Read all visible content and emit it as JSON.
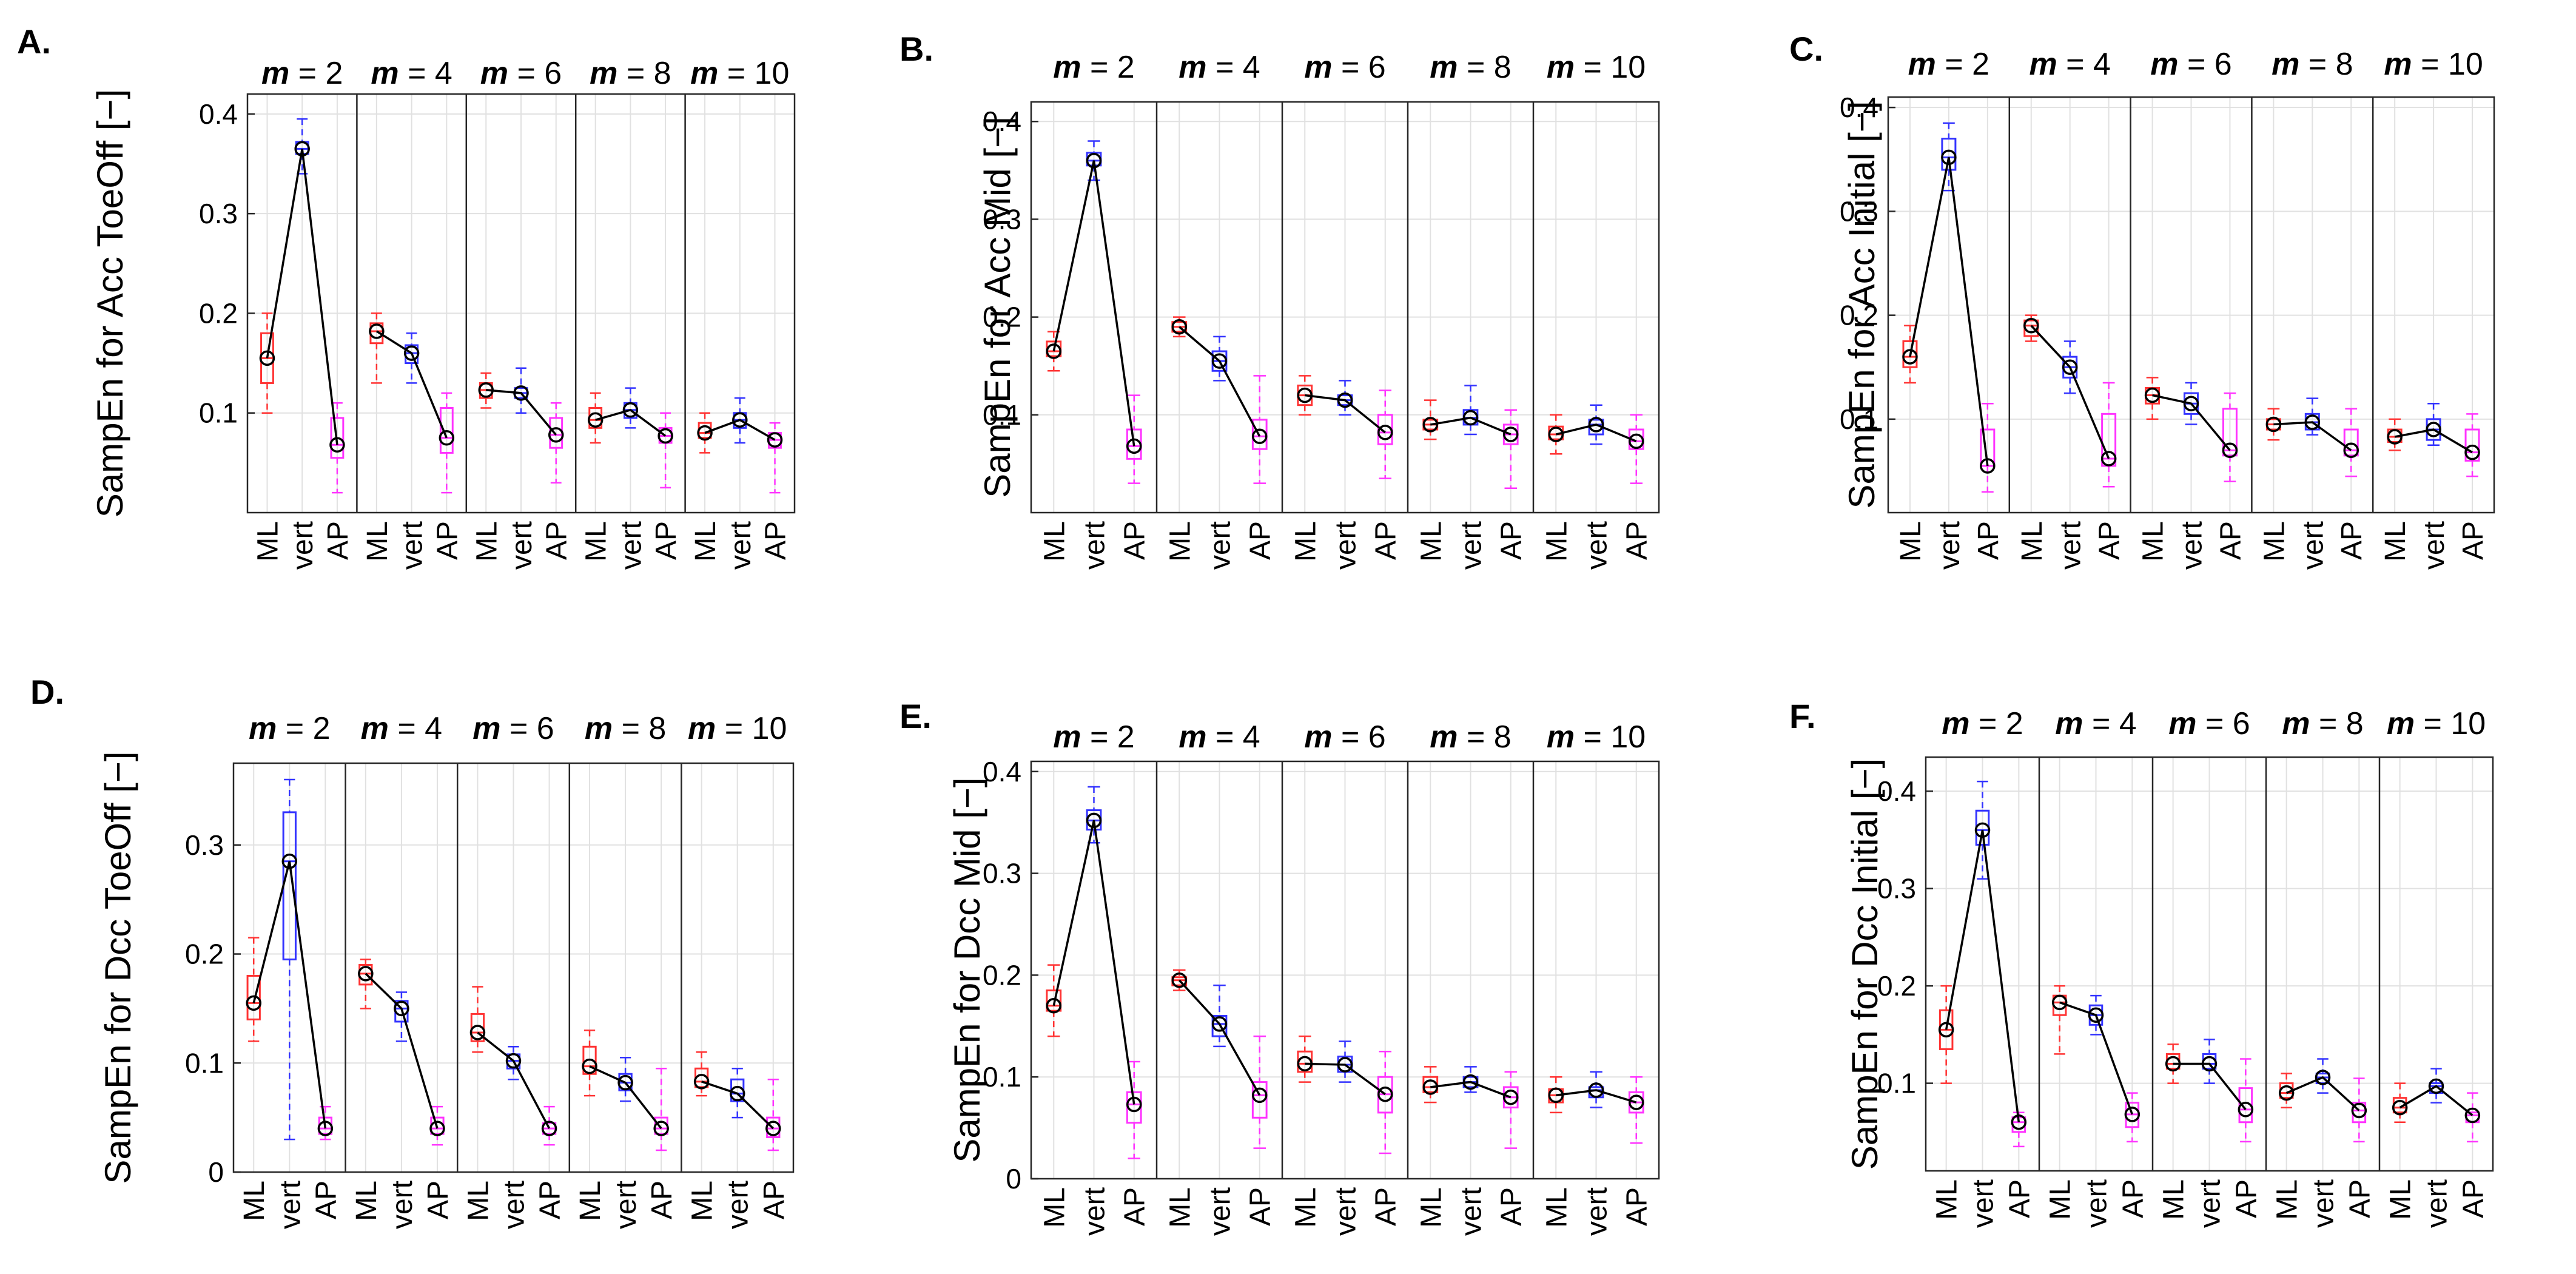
{
  "colors": {
    "ML": "#ff3333",
    "vert": "#3333ff",
    "AP": "#ff33ff",
    "median_line": "#000000"
  },
  "chart_data": [
    {
      "type": "box",
      "panel_label": "A.",
      "ylabel": "SampEn for Acc ToeOff [−]",
      "m_values": [
        "2",
        "4",
        "6",
        "8",
        "10"
      ],
      "categories": [
        "ML",
        "vert",
        "AP"
      ],
      "yticks": [
        "0.1",
        "0.2",
        "0.3",
        "0.4"
      ],
      "ylim": [
        0.0,
        0.42
      ],
      "grid": true,
      "groups": [
        [
          [
            0.1,
            0.13,
            0.155,
            0.18,
            0.2
          ],
          [
            0.34,
            0.36,
            0.365,
            0.372,
            0.395
          ],
          [
            0.02,
            0.055,
            0.068,
            0.095,
            0.11
          ]
        ],
        [
          [
            0.13,
            0.17,
            0.182,
            0.19,
            0.2
          ],
          [
            0.13,
            0.15,
            0.16,
            0.168,
            0.18
          ],
          [
            0.02,
            0.06,
            0.075,
            0.105,
            0.12
          ]
        ],
        [
          [
            0.105,
            0.115,
            0.123,
            0.13,
            0.14
          ],
          [
            0.1,
            0.115,
            0.12,
            0.125,
            0.145
          ],
          [
            0.03,
            0.065,
            0.078,
            0.095,
            0.11
          ]
        ],
        [
          [
            0.07,
            0.085,
            0.093,
            0.105,
            0.12
          ],
          [
            0.085,
            0.095,
            0.103,
            0.11,
            0.125
          ],
          [
            0.025,
            0.07,
            0.077,
            0.085,
            0.1
          ]
        ],
        [
          [
            0.06,
            0.075,
            0.08,
            0.09,
            0.1
          ],
          [
            0.07,
            0.085,
            0.093,
            0.1,
            0.115
          ],
          [
            0.02,
            0.065,
            0.073,
            0.08,
            0.09
          ]
        ]
      ]
    },
    {
      "type": "box",
      "panel_label": "B.",
      "ylabel": "SampEn for Acc Mid [−]",
      "m_values": [
        "2",
        "4",
        "6",
        "8",
        "10"
      ],
      "categories": [
        "ML",
        "vert",
        "AP"
      ],
      "yticks": [
        "0.1",
        "0.2",
        "0.3",
        "0.4"
      ],
      "ylim": [
        0.0,
        0.42
      ],
      "grid": true,
      "groups": [
        [
          [
            0.145,
            0.16,
            0.165,
            0.175,
            0.185
          ],
          [
            0.34,
            0.355,
            0.36,
            0.368,
            0.38
          ],
          [
            0.03,
            0.055,
            0.068,
            0.085,
            0.12
          ]
        ],
        [
          [
            0.18,
            0.185,
            0.19,
            0.195,
            0.2
          ],
          [
            0.135,
            0.145,
            0.155,
            0.165,
            0.18
          ],
          [
            0.03,
            0.065,
            0.078,
            0.095,
            0.14
          ]
        ],
        [
          [
            0.1,
            0.11,
            0.12,
            0.13,
            0.14
          ],
          [
            0.1,
            0.11,
            0.115,
            0.12,
            0.135
          ],
          [
            0.035,
            0.07,
            0.082,
            0.1,
            0.125
          ]
        ],
        [
          [
            0.075,
            0.085,
            0.09,
            0.095,
            0.115
          ],
          [
            0.08,
            0.09,
            0.097,
            0.105,
            0.13
          ],
          [
            0.025,
            0.07,
            0.08,
            0.09,
            0.105
          ]
        ],
        [
          [
            0.06,
            0.075,
            0.08,
            0.088,
            0.1
          ],
          [
            0.07,
            0.08,
            0.09,
            0.095,
            0.11
          ],
          [
            0.03,
            0.065,
            0.073,
            0.085,
            0.1
          ]
        ]
      ]
    },
    {
      "type": "box",
      "panel_label": "C.",
      "ylabel": "SampEn for Acc Initial [−]",
      "m_values": [
        "2",
        "4",
        "6",
        "8",
        "10"
      ],
      "categories": [
        "ML",
        "vert",
        "AP"
      ],
      "yticks": [
        "0.1",
        "0.2",
        "0.3",
        "0.4"
      ],
      "ylim": [
        0.01,
        0.41
      ],
      "grid": true,
      "groups": [
        [
          [
            0.135,
            0.15,
            0.16,
            0.175,
            0.19
          ],
          [
            0.32,
            0.34,
            0.352,
            0.37,
            0.385
          ],
          [
            0.03,
            0.055,
            0.055,
            0.09,
            0.115
          ]
        ],
        [
          [
            0.175,
            0.18,
            0.19,
            0.195,
            0.2
          ],
          [
            0.125,
            0.14,
            0.15,
            0.16,
            0.175
          ],
          [
            0.035,
            0.055,
            0.062,
            0.105,
            0.135
          ]
        ],
        [
          [
            0.1,
            0.115,
            0.123,
            0.13,
            0.14
          ],
          [
            0.095,
            0.105,
            0.115,
            0.125,
            0.135
          ],
          [
            0.04,
            0.065,
            0.07,
            0.11,
            0.125
          ]
        ],
        [
          [
            0.08,
            0.09,
            0.095,
            0.1,
            0.11
          ],
          [
            0.085,
            0.09,
            0.097,
            0.105,
            0.12
          ],
          [
            0.045,
            0.065,
            0.07,
            0.09,
            0.11
          ]
        ],
        [
          [
            0.07,
            0.078,
            0.083,
            0.09,
            0.1
          ],
          [
            0.075,
            0.08,
            0.09,
            0.1,
            0.115
          ],
          [
            0.045,
            0.06,
            0.068,
            0.09,
            0.105
          ]
        ]
      ]
    },
    {
      "type": "box",
      "panel_label": "D.",
      "ylabel": "SampEn for  Dcc ToeOff [−]",
      "m_values": [
        "2",
        "4",
        "6",
        "8",
        "10"
      ],
      "categories": [
        "ML",
        "vert",
        "AP"
      ],
      "yticks": [
        "0",
        "0.1",
        "0.2",
        "0.3"
      ],
      "ylim": [
        0.0,
        0.375
      ],
      "grid": true,
      "groups": [
        [
          [
            0.12,
            0.14,
            0.155,
            0.18,
            0.215
          ],
          [
            0.03,
            0.195,
            0.285,
            0.33,
            0.36
          ],
          [
            0.03,
            0.035,
            0.04,
            0.05,
            0.06
          ]
        ],
        [
          [
            0.15,
            0.172,
            0.182,
            0.19,
            0.195
          ],
          [
            0.12,
            0.138,
            0.15,
            0.157,
            0.165
          ],
          [
            0.025,
            0.035,
            0.04,
            0.05,
            0.06
          ]
        ],
        [
          [
            0.11,
            0.12,
            0.128,
            0.145,
            0.17
          ],
          [
            0.085,
            0.095,
            0.102,
            0.108,
            0.115
          ],
          [
            0.025,
            0.035,
            0.04,
            0.045,
            0.06
          ]
        ],
        [
          [
            0.07,
            0.09,
            0.097,
            0.115,
            0.13
          ],
          [
            0.065,
            0.075,
            0.082,
            0.09,
            0.105
          ],
          [
            0.02,
            0.035,
            0.04,
            0.05,
            0.095
          ]
        ],
        [
          [
            0.07,
            0.078,
            0.083,
            0.095,
            0.11
          ],
          [
            0.05,
            0.065,
            0.072,
            0.085,
            0.095
          ],
          [
            0.02,
            0.032,
            0.04,
            0.05,
            0.085
          ]
        ]
      ]
    },
    {
      "type": "box",
      "panel_label": "E.",
      "ylabel": "SampEn for  Dcc Mid [−]",
      "m_values": [
        "2",
        "4",
        "6",
        "8",
        "10"
      ],
      "categories": [
        "ML",
        "vert",
        "AP"
      ],
      "yticks": [
        "0",
        "0.1",
        "0.2",
        "0.3",
        "0.4"
      ],
      "ylim": [
        0.0,
        0.41
      ],
      "grid": true,
      "groups": [
        [
          [
            0.14,
            0.165,
            0.17,
            0.185,
            0.21
          ],
          [
            0.33,
            0.343,
            0.352,
            0.362,
            0.385
          ],
          [
            0.02,
            0.055,
            0.073,
            0.085,
            0.115
          ]
        ],
        [
          [
            0.185,
            0.19,
            0.195,
            0.198,
            0.205
          ],
          [
            0.13,
            0.14,
            0.152,
            0.16,
            0.19
          ],
          [
            0.03,
            0.06,
            0.082,
            0.095,
            0.14
          ]
        ],
        [
          [
            0.095,
            0.105,
            0.113,
            0.125,
            0.14
          ],
          [
            0.095,
            0.105,
            0.112,
            0.12,
            0.135
          ],
          [
            0.025,
            0.065,
            0.083,
            0.1,
            0.125
          ]
        ],
        [
          [
            0.075,
            0.085,
            0.09,
            0.1,
            0.11
          ],
          [
            0.085,
            0.09,
            0.095,
            0.1,
            0.11
          ],
          [
            0.03,
            0.07,
            0.08,
            0.09,
            0.105
          ]
        ],
        [
          [
            0.065,
            0.075,
            0.082,
            0.088,
            0.1
          ],
          [
            0.07,
            0.08,
            0.087,
            0.09,
            0.105
          ],
          [
            0.035,
            0.065,
            0.075,
            0.085,
            0.1
          ]
        ]
      ]
    },
    {
      "type": "box",
      "panel_label": "F.",
      "ylabel": "SampEn for  Dcc Initial [−]",
      "m_values": [
        "2",
        "4",
        "6",
        "8",
        "10"
      ],
      "categories": [
        "ML",
        "vert",
        "AP"
      ],
      "yticks": [
        "0.1",
        "0.2",
        "0.3",
        "0.4"
      ],
      "ylim": [
        0.01,
        0.435
      ],
      "grid": true,
      "groups": [
        [
          [
            0.1,
            0.135,
            0.155,
            0.175,
            0.2
          ],
          [
            0.31,
            0.345,
            0.36,
            0.38,
            0.41
          ],
          [
            0.035,
            0.05,
            0.06,
            0.065,
            0.07
          ]
        ],
        [
          [
            0.13,
            0.17,
            0.183,
            0.19,
            0.2
          ],
          [
            0.15,
            0.16,
            0.17,
            0.18,
            0.19
          ],
          [
            0.04,
            0.055,
            0.068,
            0.08,
            0.09
          ]
        ],
        [
          [
            0.1,
            0.115,
            0.12,
            0.13,
            0.14
          ],
          [
            0.1,
            0.115,
            0.12,
            0.13,
            0.145
          ],
          [
            0.04,
            0.06,
            0.073,
            0.095,
            0.125
          ]
        ],
        [
          [
            0.075,
            0.085,
            0.09,
            0.1,
            0.11
          ],
          [
            0.09,
            0.1,
            0.106,
            0.11,
            0.125
          ],
          [
            0.04,
            0.06,
            0.072,
            0.08,
            0.105
          ]
        ],
        [
          [
            0.06,
            0.07,
            0.075,
            0.085,
            0.1
          ],
          [
            0.08,
            0.09,
            0.097,
            0.1,
            0.115
          ],
          [
            0.04,
            0.06,
            0.067,
            0.07,
            0.09
          ]
        ]
      ]
    }
  ]
}
